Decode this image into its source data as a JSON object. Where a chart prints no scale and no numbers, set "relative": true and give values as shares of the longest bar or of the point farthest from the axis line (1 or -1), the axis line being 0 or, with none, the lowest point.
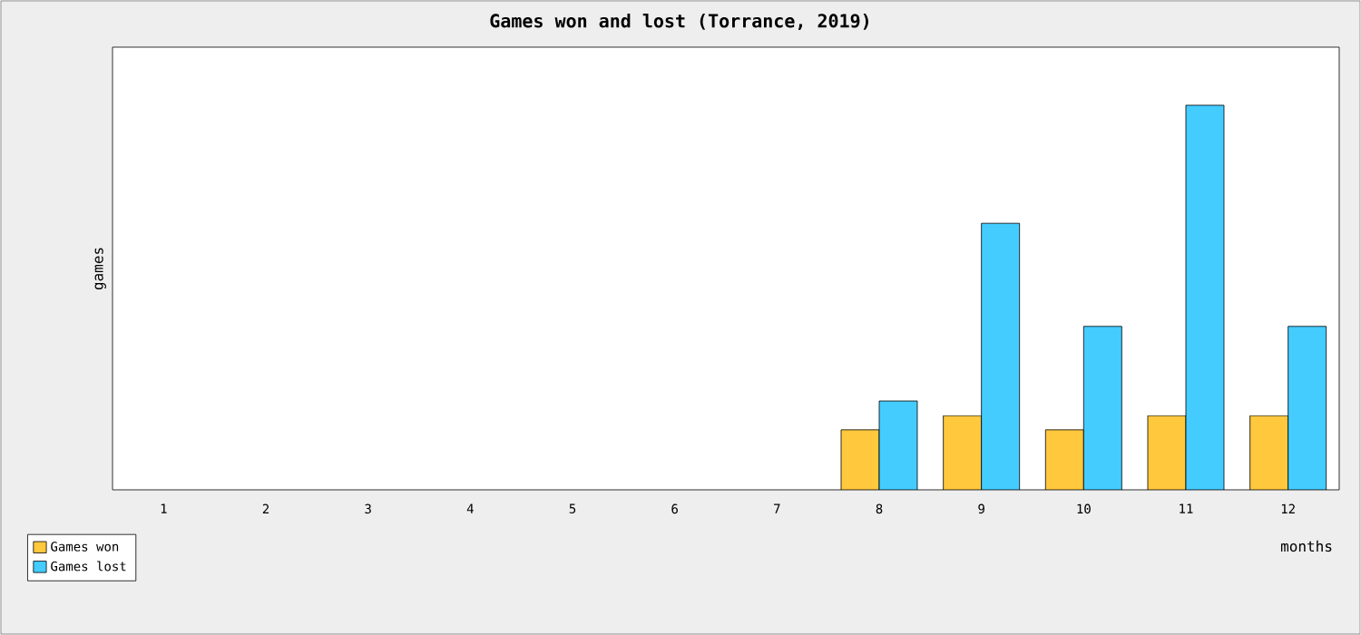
{
  "chart_data": {
    "type": "bar",
    "title": "Games won and lost (Torrance, 2019)",
    "xlabel": "months",
    "ylabel": "games",
    "relative": true,
    "categories": [
      "1",
      "2",
      "3",
      "4",
      "5",
      "6",
      "7",
      "8",
      "9",
      "10",
      "11",
      "12"
    ],
    "series": [
      {
        "name": "Games won",
        "color": "#ffc83d",
        "values": [
          null,
          null,
          null,
          null,
          null,
          null,
          null,
          0.156,
          0.193,
          0.156,
          0.193,
          0.193
        ]
      },
      {
        "name": "Games lost",
        "color": "#44ccff",
        "values": [
          null,
          null,
          null,
          null,
          null,
          null,
          null,
          0.231,
          0.693,
          0.425,
          1,
          0.425
        ]
      }
    ],
    "legend": "bottom left"
  }
}
